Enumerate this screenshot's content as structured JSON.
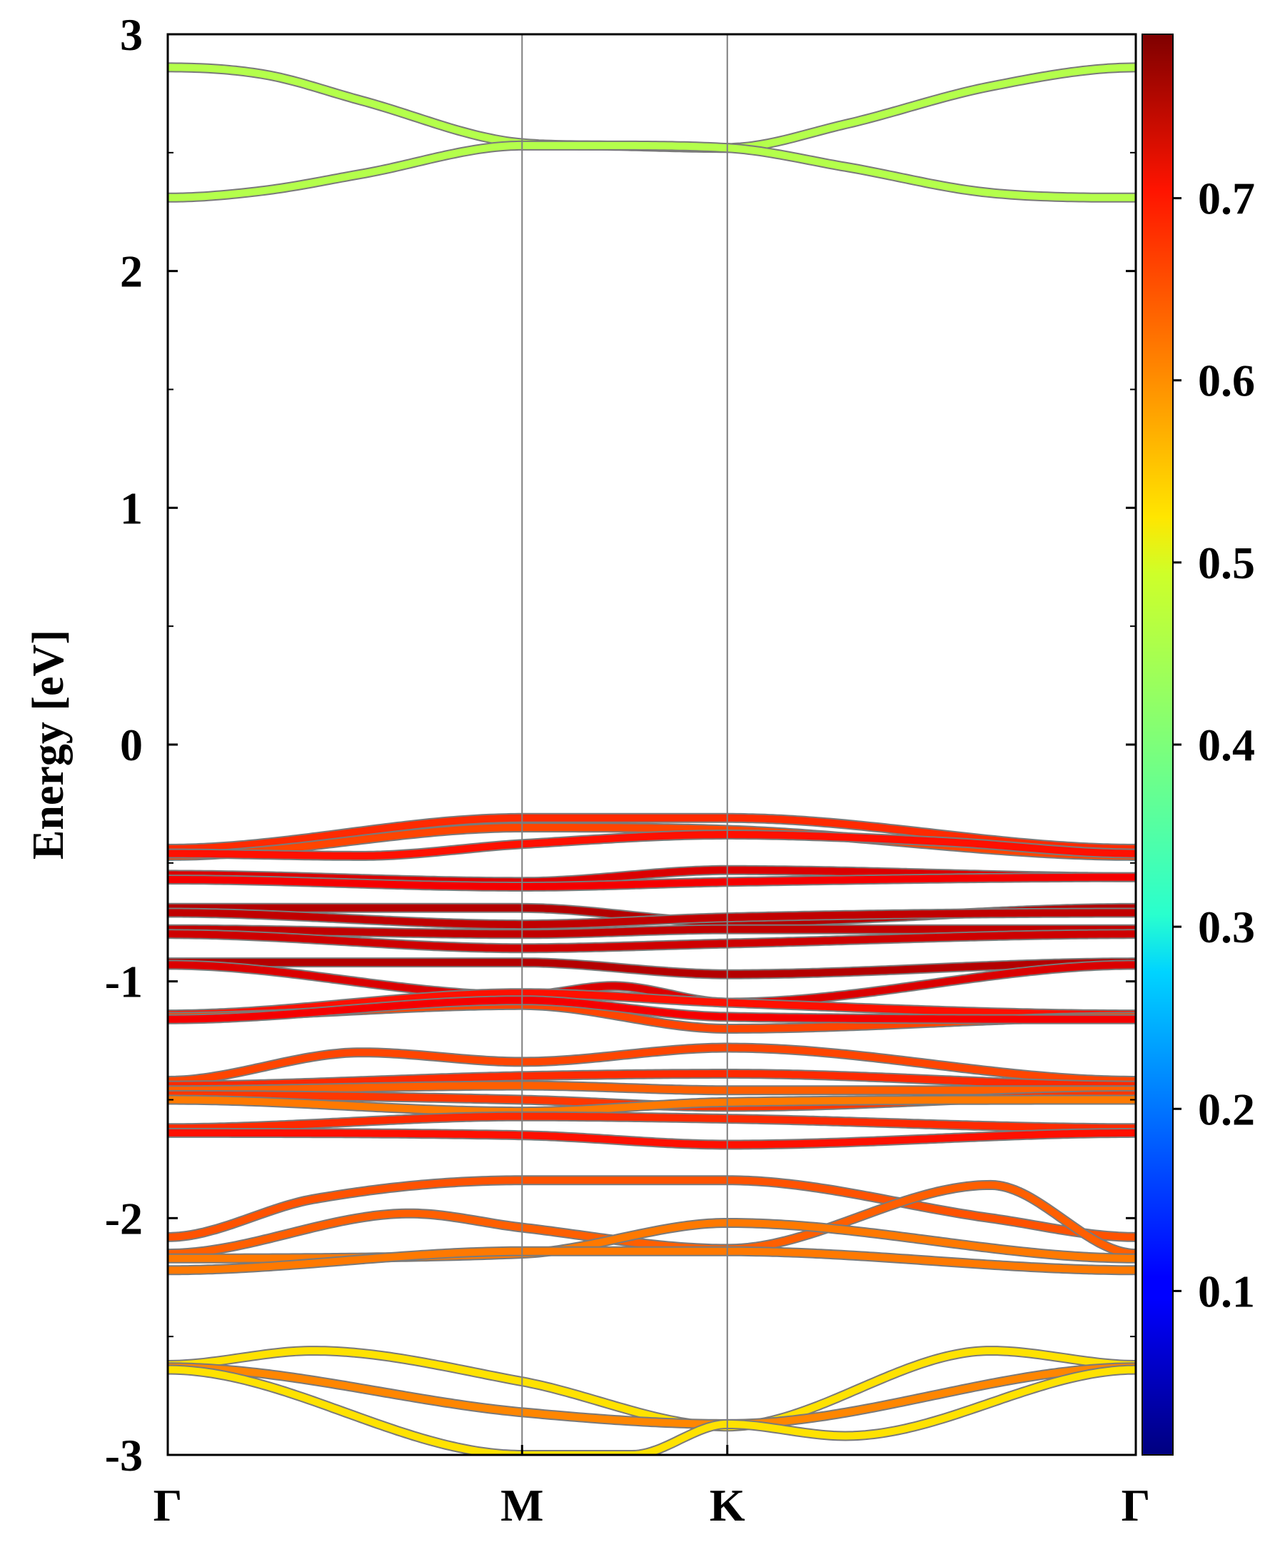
{
  "chart_data": {
    "type": "line",
    "ylabel": "Energy [eV]",
    "ylim": [
      -3,
      3
    ],
    "yticks": [
      "3",
      "2",
      "1",
      "0",
      "-1",
      "-2",
      "-3"
    ],
    "kpath": {
      "labels": [
        "Γ",
        "M",
        "K",
        "Γ"
      ],
      "positions": [
        0,
        0.366,
        0.578,
        1.0
      ]
    },
    "colorbar": {
      "colormap": "jet",
      "range": [
        0.01,
        0.79
      ],
      "ticks": [
        "0.7",
        "0.6",
        "0.5",
        "0.4",
        "0.3",
        "0.2",
        "0.1"
      ]
    },
    "bands": [
      {
        "x": [
          0,
          0.1,
          0.2,
          0.366,
          0.45,
          0.578,
          0.7,
          0.85,
          1.0
        ],
        "energy": [
          2.86,
          2.83,
          2.72,
          2.54,
          2.53,
          2.52,
          2.62,
          2.78,
          2.86
        ],
        "weight": 0.44
      },
      {
        "x": [
          0,
          0.1,
          0.2,
          0.366,
          0.45,
          0.578,
          0.7,
          0.85,
          1.0
        ],
        "energy": [
          2.31,
          2.34,
          2.41,
          2.53,
          2.53,
          2.52,
          2.44,
          2.33,
          2.31
        ],
        "weight": 0.44
      },
      {
        "x": [
          0,
          0.366,
          0.578,
          1.0
        ],
        "energy": [
          -0.44,
          -0.31,
          -0.31,
          -0.44
        ],
        "weight": 0.66
      },
      {
        "x": [
          0,
          0.366,
          0.578,
          1.0
        ],
        "energy": [
          -0.47,
          -0.35,
          -0.36,
          -0.47
        ],
        "weight": 0.64
      },
      {
        "x": [
          0,
          0.2,
          0.366,
          0.578,
          0.8,
          1.0
        ],
        "energy": [
          -0.46,
          -0.47,
          -0.42,
          -0.38,
          -0.41,
          -0.46
        ],
        "weight": 0.68
      },
      {
        "x": [
          0,
          0.366,
          0.578,
          1.0
        ],
        "energy": [
          -0.55,
          -0.58,
          -0.53,
          -0.56
        ],
        "weight": 0.72
      },
      {
        "x": [
          0,
          0.366,
          0.578,
          1.0
        ],
        "energy": [
          -0.57,
          -0.6,
          -0.58,
          -0.56
        ],
        "weight": 0.7
      },
      {
        "x": [
          0,
          0.366,
          0.578,
          1.0
        ],
        "energy": [
          -0.69,
          -0.69,
          -0.75,
          -0.69
        ],
        "weight": 0.75
      },
      {
        "x": [
          0,
          0.366,
          0.578,
          1.0
        ],
        "energy": [
          -0.71,
          -0.76,
          -0.73,
          -0.71
        ],
        "weight": 0.74
      },
      {
        "x": [
          0,
          0.366,
          0.578,
          1.0
        ],
        "energy": [
          -0.78,
          -0.8,
          -0.78,
          -0.78
        ],
        "weight": 0.74
      },
      {
        "x": [
          0,
          0.366,
          0.578,
          1.0
        ],
        "energy": [
          -0.8,
          -0.86,
          -0.84,
          -0.8
        ],
        "weight": 0.73
      },
      {
        "x": [
          0,
          0.366,
          0.578,
          1.0
        ],
        "energy": [
          -0.92,
          -0.92,
          -0.97,
          -0.92
        ],
        "weight": 0.75
      },
      {
        "x": [
          0,
          0.366,
          0.46,
          0.578,
          1.0
        ],
        "energy": [
          -0.93,
          -1.06,
          -1.02,
          -1.09,
          -0.93
        ],
        "weight": 0.72
      },
      {
        "x": [
          0,
          0.366,
          0.578,
          1.0
        ],
        "energy": [
          -1.14,
          -1.05,
          -1.09,
          -1.14
        ],
        "weight": 0.68
      },
      {
        "x": [
          0,
          0.366,
          0.578,
          1.0
        ],
        "energy": [
          -1.15,
          -1.1,
          -1.2,
          -1.15
        ],
        "weight": 0.64
      },
      {
        "x": [
          0,
          0.366,
          0.578,
          1.0
        ],
        "energy": [
          -1.16,
          -1.08,
          -1.15,
          -1.16
        ],
        "weight": 0.7
      },
      {
        "x": [
          0,
          0.2,
          0.366,
          0.578,
          1.0
        ],
        "energy": [
          -1.42,
          -1.3,
          -1.34,
          -1.28,
          -1.42
        ],
        "weight": 0.64
      },
      {
        "x": [
          0,
          0.366,
          0.578,
          1.0
        ],
        "energy": [
          -1.44,
          -1.4,
          -1.39,
          -1.44
        ],
        "weight": 0.66
      },
      {
        "x": [
          0,
          0.366,
          0.578,
          1.0
        ],
        "energy": [
          -1.46,
          -1.44,
          -1.46,
          -1.46
        ],
        "weight": 0.62
      },
      {
        "x": [
          0,
          0.366,
          0.578,
          1.0
        ],
        "energy": [
          -1.48,
          -1.5,
          -1.53,
          -1.48
        ],
        "weight": 0.65
      },
      {
        "x": [
          0,
          0.366,
          0.578,
          1.0
        ],
        "energy": [
          -1.5,
          -1.55,
          -1.51,
          -1.5
        ],
        "weight": 0.6
      },
      {
        "x": [
          0,
          0.366,
          0.578,
          1.0
        ],
        "energy": [
          -1.62,
          -1.57,
          -1.58,
          -1.62
        ],
        "weight": 0.66
      },
      {
        "x": [
          0,
          0.366,
          0.578,
          1.0
        ],
        "energy": [
          -1.64,
          -1.65,
          -1.69,
          -1.64
        ],
        "weight": 0.68
      },
      {
        "x": [
          0,
          0.15,
          0.366,
          0.578,
          0.85,
          1.0
        ],
        "energy": [
          -2.08,
          -1.92,
          -1.84,
          -1.84,
          -2.0,
          -2.08
        ],
        "weight": 0.63
      },
      {
        "x": [
          0,
          0.25,
          0.366,
          0.578,
          0.85,
          1.0
        ],
        "energy": [
          -2.15,
          -1.98,
          -2.04,
          -2.13,
          -1.86,
          -2.15
        ],
        "weight": 0.62
      },
      {
        "x": [
          0,
          0.366,
          0.578,
          1.0
        ],
        "energy": [
          -2.17,
          -2.15,
          -2.02,
          -2.17
        ],
        "weight": 0.6
      },
      {
        "x": [
          0,
          0.366,
          0.578,
          1.0
        ],
        "energy": [
          -2.22,
          -2.14,
          -2.14,
          -2.22
        ],
        "weight": 0.6
      },
      {
        "x": [
          0,
          0.15,
          0.366,
          0.578,
          0.85,
          1.0
        ],
        "energy": [
          -2.62,
          -2.56,
          -2.69,
          -2.88,
          -2.56,
          -2.62
        ],
        "weight": 0.52
      },
      {
        "x": [
          0,
          0.366,
          0.578,
          1.0
        ],
        "energy": [
          -2.63,
          -2.82,
          -2.87,
          -2.63
        ],
        "weight": 0.59
      },
      {
        "x": [
          0,
          0.366,
          0.48,
          0.578,
          0.7,
          1.0
        ],
        "energy": [
          -2.64,
          -3.0,
          -3.0,
          -2.87,
          -2.92,
          -2.64
        ],
        "weight": 0.52
      }
    ]
  }
}
